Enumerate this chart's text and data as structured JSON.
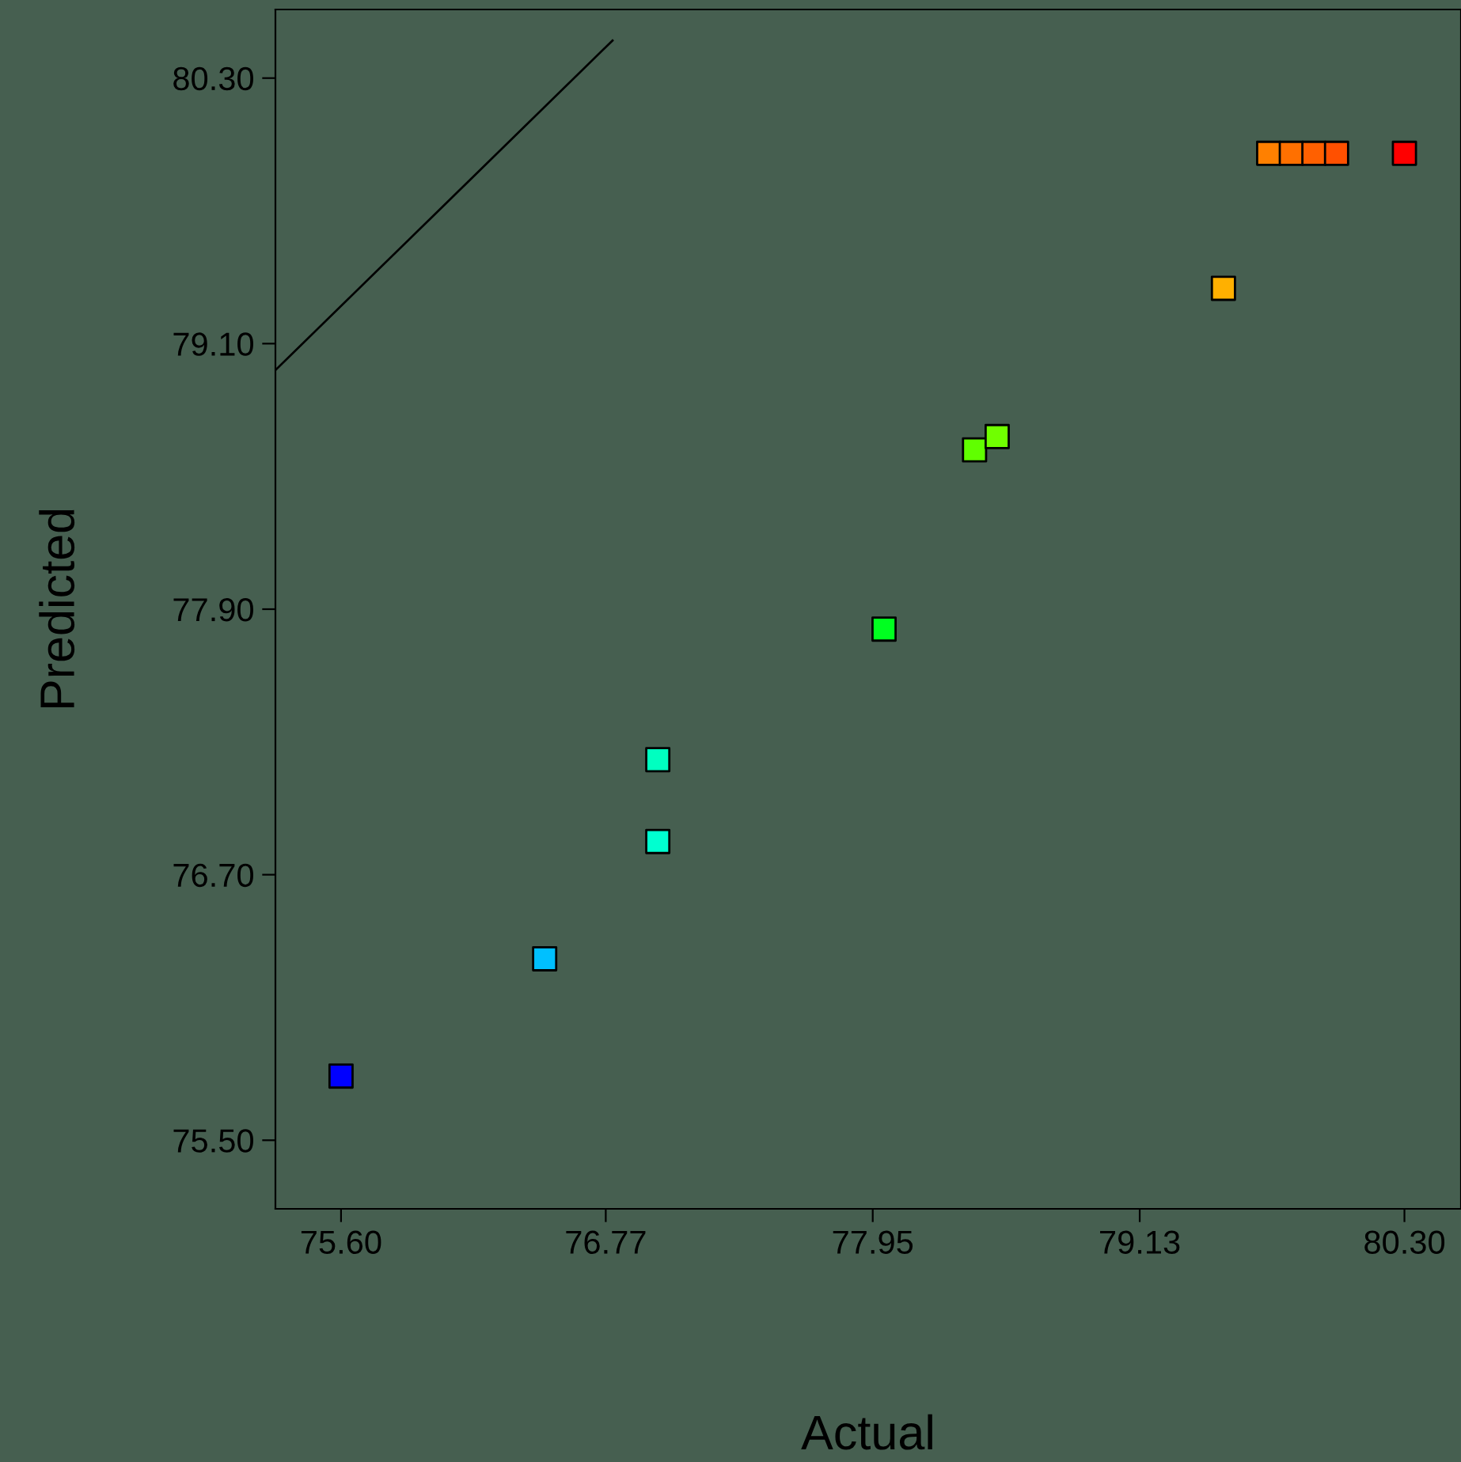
{
  "chart_data": {
    "type": "scatter",
    "xlabel": "Actual",
    "ylabel": "Predicted",
    "xlim": [
      75.31,
      80.55
    ],
    "ylim": [
      75.19,
      80.61
    ],
    "xticks": [
      {
        "value": 75.6,
        "label": "75.60"
      },
      {
        "value": 76.77,
        "label": "76.77"
      },
      {
        "value": 77.95,
        "label": "77.95"
      },
      {
        "value": 79.13,
        "label": "79.13"
      },
      {
        "value": 80.3,
        "label": "80.30"
      }
    ],
    "yticks": [
      {
        "value": 75.5,
        "label": "75.50"
      },
      {
        "value": 76.7,
        "label": "76.70"
      },
      {
        "value": 77.9,
        "label": "77.90"
      },
      {
        "value": 79.1,
        "label": "79.10"
      },
      {
        "value": 80.3,
        "label": "80.30"
      }
    ],
    "grid": false,
    "legend": false,
    "marker": "square",
    "series": [
      {
        "type": "line",
        "marker": "none",
        "color": "#000000",
        "x": [
          75.31,
          76.8
        ],
        "values": [
          78.98,
          80.47
        ]
      },
      {
        "x": [
          75.6,
          76.5,
          77.0,
          77.0,
          78.0,
          78.4,
          78.5,
          79.5,
          79.7,
          79.8,
          79.9,
          80.0,
          80.3
        ],
        "values": [
          75.79,
          76.32,
          76.85,
          77.22,
          77.81,
          78.62,
          78.68,
          79.35,
          79.96,
          79.96,
          79.96,
          79.96,
          79.96
        ],
        "colors": [
          "#0000ff",
          "#00c0ff",
          "#00ffd0",
          "#00ffc0",
          "#00ff20",
          "#60ff00",
          "#70ff00",
          "#ffb000",
          "#ff8000",
          "#ff7000",
          "#ff6000",
          "#ff5000",
          "#ff0000"
        ]
      }
    ]
  }
}
